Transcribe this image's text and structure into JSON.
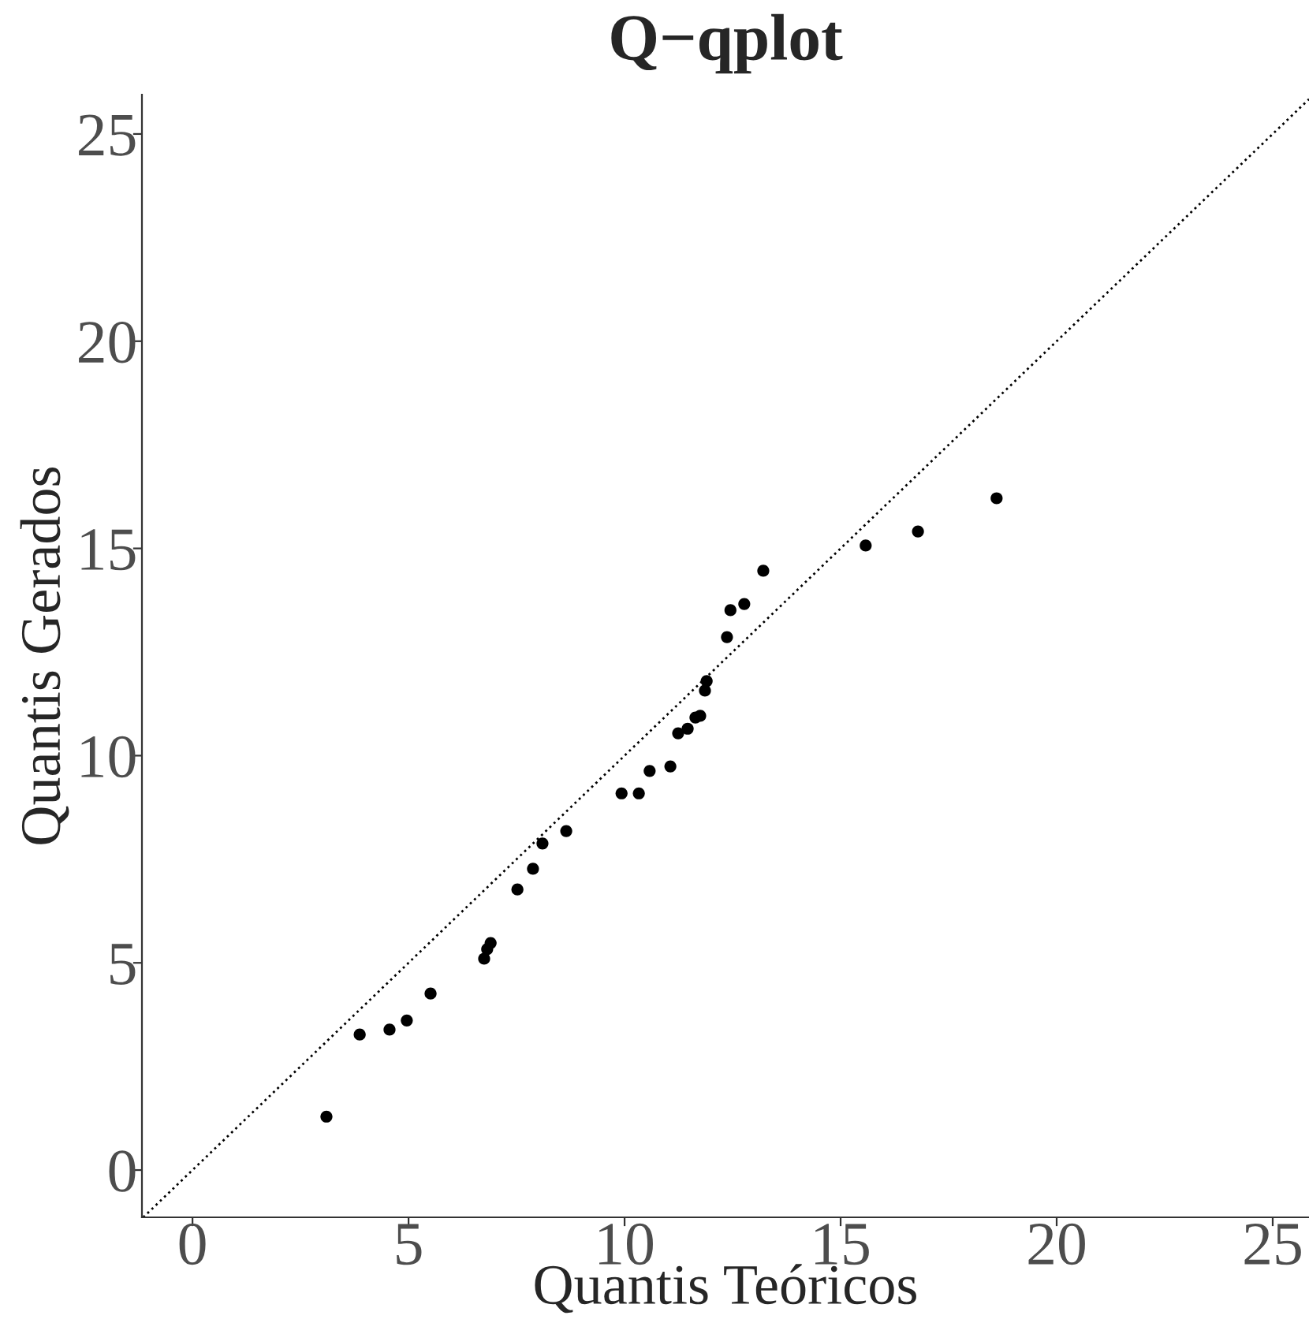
{
  "chart_data": {
    "type": "scatter",
    "title": "Q−qplot",
    "xlabel": "Quantis Teóricos",
    "ylabel": "Quantis Gerados",
    "series": [
      {
        "color": "#000000",
        "marker": "circle",
        "x": [
          3.1,
          3.87,
          4.56,
          4.96,
          5.51,
          6.75,
          6.82,
          6.9,
          7.52,
          7.88,
          8.1,
          8.65,
          9.93,
          10.33,
          10.58,
          11.06,
          11.24,
          11.46,
          11.64,
          11.75,
          11.86,
          11.9,
          12.37,
          12.45,
          12.77,
          13.21,
          15.58,
          16.79,
          18.61
        ],
        "values": [
          1.29,
          3.27,
          3.39,
          3.61,
          4.26,
          5.1,
          5.33,
          5.48,
          6.77,
          7.27,
          7.88,
          8.18,
          9.09,
          9.09,
          9.63,
          9.74,
          10.54,
          10.65,
          10.92,
          10.96,
          11.57,
          11.8,
          12.86,
          13.51,
          13.66,
          14.46,
          15.07,
          15.41,
          16.21
        ]
      },
      {
        "type": "line",
        "color": "#000000",
        "line_style": "dotted",
        "x": [
          -1.14,
          25.84
        ],
        "values": [
          -1.14,
          25.84
        ]
      }
    ],
    "xlim": [
      -1.17,
      25.84
    ],
    "ylim": [
      -1.14,
      25.95
    ],
    "xticks": [
      0,
      5,
      10,
      15,
      20,
      25
    ],
    "yticks": [
      0,
      5,
      10,
      15,
      20,
      25
    ],
    "grid": false,
    "legend": false
  }
}
